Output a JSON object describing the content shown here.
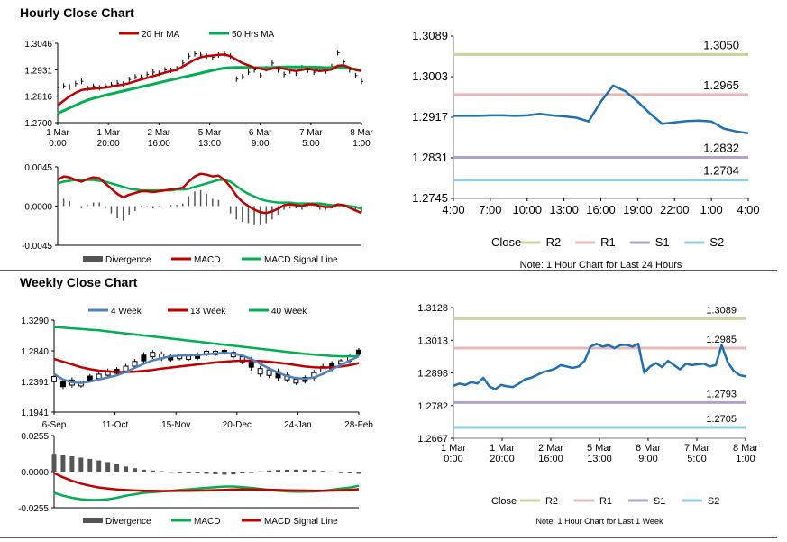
{
  "hourly_title": "Hourly Close Chart",
  "weekly_title": "Weekly Close Chart",
  "chart_data": [
    {
      "id": "hourly-price",
      "type": "line",
      "title": "",
      "legend": [
        "20 Hr MA",
        "50 Hrs MA"
      ],
      "colors": {
        "ma_short": "#c00000",
        "ma_long": "#00b050",
        "price": "#000000"
      },
      "y_ticks": [
        "1.3046",
        "1.2931",
        "1.2816",
        "1.2700"
      ],
      "ylim": [
        1.27,
        1.3046
      ],
      "x_ticks": [
        [
          "1 Mar",
          "0:00"
        ],
        [
          "1 Mar",
          "20:00"
        ],
        [
          "2 Mar",
          "16:00"
        ],
        [
          "5 Mar",
          "13:00"
        ],
        [
          "6 Mar",
          "9:00"
        ],
        [
          "7 Mar",
          "5:00"
        ],
        [
          "8 Mar",
          "1:00"
        ]
      ],
      "price": [
        1.2852,
        1.286,
        1.2855,
        1.287,
        1.288,
        1.285,
        1.2858,
        1.2852,
        1.286,
        1.2865,
        1.2872,
        1.2868,
        1.2888,
        1.29,
        1.2898,
        1.291,
        1.292,
        1.2915,
        1.293,
        1.2928,
        1.2935,
        1.296,
        1.299,
        1.3,
        1.2995,
        1.299,
        1.2985,
        1.2995,
        1.3,
        1.299,
        1.289,
        1.29,
        1.292,
        1.293,
        1.2905,
        1.2935,
        1.296,
        1.293,
        1.291,
        1.2925,
        1.2915,
        1.294,
        1.293,
        1.292,
        1.2935,
        1.2925,
        1.2945,
        1.3005,
        1.2965,
        1.293,
        1.2905,
        1.288
      ],
      "ma_short": [
        1.2775,
        1.2795,
        1.2815,
        1.283,
        1.2842,
        1.2846,
        1.2848,
        1.285,
        1.2853,
        1.2857,
        1.2862,
        1.2866,
        1.2872,
        1.288,
        1.2888,
        1.2895,
        1.2903,
        1.291,
        1.2918,
        1.2925,
        1.293,
        1.2945,
        1.296,
        1.2975,
        1.2985,
        1.299,
        1.2993,
        1.2996,
        1.2997,
        1.299,
        1.2975,
        1.296,
        1.295,
        1.294,
        1.2935,
        1.293,
        1.2935,
        1.294,
        1.2935,
        1.293,
        1.2925,
        1.293,
        1.2935,
        1.293,
        1.2925,
        1.2928,
        1.2932,
        1.2948,
        1.295,
        1.294,
        1.293,
        1.2925
      ],
      "ma_long": [
        1.274,
        1.2752,
        1.2764,
        1.2776,
        1.2788,
        1.2798,
        1.2806,
        1.2813,
        1.282,
        1.2826,
        1.2832,
        1.2838,
        1.2844,
        1.285,
        1.2856,
        1.2862,
        1.2868,
        1.2874,
        1.288,
        1.2886,
        1.2892,
        1.2898,
        1.2904,
        1.291,
        1.2916,
        1.2922,
        1.2928,
        1.2933,
        1.2938,
        1.294,
        1.2941,
        1.2941,
        1.2941,
        1.294,
        1.294,
        1.294,
        1.2941,
        1.2942,
        1.2943,
        1.2943,
        1.2943,
        1.2943,
        1.2943,
        1.2942,
        1.2941,
        1.294,
        1.294,
        1.2942,
        1.294,
        1.2937,
        1.2933,
        1.2928
      ]
    },
    {
      "id": "hourly-macd",
      "type": "line",
      "legend": [
        "Divergence",
        "MACD",
        "MACD Signal Line"
      ],
      "colors": {
        "divergence": "#555555",
        "macd": "#c00000",
        "signal": "#00b050"
      },
      "y_ticks": [
        "0.0045",
        "0.0000",
        "-0.0045"
      ],
      "ylim": [
        -0.0045,
        0.0045
      ],
      "macd": [
        0.003,
        0.0034,
        0.0033,
        0.003,
        0.0028,
        0.0031,
        0.0033,
        0.0032,
        0.0026,
        0.002,
        0.0014,
        0.001,
        0.0013,
        0.0015,
        0.0017,
        0.0017,
        0.0016,
        0.0017,
        0.0018,
        0.0019,
        0.002,
        0.0021,
        0.0028,
        0.0034,
        0.0037,
        0.0036,
        0.0034,
        0.0035,
        0.003,
        0.0022,
        0.0012,
        0.0005,
        0.0,
        -0.0004,
        -0.0007,
        -0.0008,
        -0.0006,
        -0.0003,
        0.0001,
        0.0002,
        0.0001,
        0.0,
        0.0002,
        0.0002,
        0.0,
        -0.0001,
        -0.0001,
        0.0002,
        0.0001,
        -0.0002,
        -0.0005,
        -0.0008
      ],
      "signal": [
        0.0026,
        0.0028,
        0.0029,
        0.003,
        0.003,
        0.003,
        0.003,
        0.0029,
        0.0028,
        0.0026,
        0.0024,
        0.0022,
        0.002,
        0.0019,
        0.0018,
        0.0018,
        0.0018,
        0.0018,
        0.0018,
        0.0018,
        0.0019,
        0.0019,
        0.002,
        0.0022,
        0.0024,
        0.0026,
        0.0028,
        0.003,
        0.003,
        0.0028,
        0.0023,
        0.0018,
        0.0014,
        0.0011,
        0.0008,
        0.0006,
        0.0005,
        0.0004,
        0.0004,
        0.0004,
        0.0003,
        0.0003,
        0.0003,
        0.0003,
        0.0003,
        0.0002,
        0.0001,
        0.0001,
        0.0001,
        0.0,
        -0.0001,
        -0.0003
      ]
    },
    {
      "id": "hourly-pivots",
      "type": "line",
      "title": "Note: 1 Hour Chart for Last 24 Hours",
      "legend": [
        "Close",
        "R2",
        "R1",
        "S1",
        "S2"
      ],
      "colors": {
        "close": "#1f6fb2",
        "R2": "#c3d69b",
        "R1": "#e6b9b8",
        "S1": "#b3a2c7",
        "S2": "#93cddd"
      },
      "y_ticks": [
        "1.3089",
        "1.3003",
        "1.2917",
        "1.2831",
        "1.2745"
      ],
      "ylim": [
        1.2745,
        1.3089
      ],
      "x_ticks": [
        "4:00",
        "7:00",
        "10:00",
        "13:00",
        "16:00",
        "19:00",
        "22:00",
        "1:00",
        "4:00"
      ],
      "levels": {
        "R2": 1.305,
        "R1": 1.2965,
        "S1": 1.2832,
        "S2": 1.2784
      },
      "level_labels": {
        "R2": "1.3050",
        "R1": "1.2965",
        "S1": "1.2832",
        "S2": "1.2784"
      },
      "close": [
        1.292,
        1.292,
        1.292,
        1.2921,
        1.2921,
        1.292,
        1.2921,
        1.2924,
        1.2921,
        1.2919,
        1.2916,
        1.2908,
        1.295,
        1.2984,
        1.2972,
        1.295,
        1.2925,
        1.2903,
        1.2906,
        1.2909,
        1.291,
        1.2908,
        1.2893,
        1.2887,
        1.2883
      ]
    },
    {
      "id": "weekly-price",
      "type": "line",
      "legend": [
        "4 Week",
        "13 Week",
        "40 Week"
      ],
      "colors": {
        "ma4": "#4f81bd",
        "ma13": "#c00000",
        "ma40": "#00b050",
        "price": "#000000"
      },
      "y_ticks": [
        "1.3290",
        "1.2840",
        "1.2391",
        "1.1941"
      ],
      "ylim": [
        1.1941,
        1.329
      ],
      "x_ticks": [
        "6-Sep",
        "11-Oct",
        "15-Nov",
        "20-Dec",
        "24-Jan",
        "28-Feb"
      ],
      "candles": [
        [
          1.25,
          1.235
        ],
        [
          1.242,
          1.228
        ],
        [
          1.245,
          1.23
        ],
        [
          1.24,
          1.23
        ],
        [
          1.25,
          1.238
        ],
        [
          1.253,
          1.24
        ],
        [
          1.258,
          1.245
        ],
        [
          1.26,
          1.248
        ],
        [
          1.265,
          1.251
        ],
        [
          1.272,
          1.258
        ],
        [
          1.282,
          1.265
        ],
        [
          1.285,
          1.272
        ],
        [
          1.283,
          1.269
        ],
        [
          1.279,
          1.268
        ],
        [
          1.28,
          1.27
        ],
        [
          1.279,
          1.269
        ],
        [
          1.282,
          1.27
        ],
        [
          1.286,
          1.276
        ],
        [
          1.286,
          1.276
        ],
        [
          1.287,
          1.278
        ],
        [
          1.285,
          1.272
        ],
        [
          1.279,
          1.264
        ],
        [
          1.275,
          1.255
        ],
        [
          1.262,
          1.246
        ],
        [
          1.26,
          1.244
        ],
        [
          1.258,
          1.24
        ],
        [
          1.252,
          1.238
        ],
        [
          1.245,
          1.234
        ],
        [
          1.248,
          1.236
        ],
        [
          1.256,
          1.24
        ],
        [
          1.265,
          1.249
        ],
        [
          1.269,
          1.254
        ],
        [
          1.272,
          1.262
        ],
        [
          1.28,
          1.265
        ],
        [
          1.288,
          1.276
        ]
      ],
      "ma4": [
        1.25,
        1.242,
        1.238,
        1.237,
        1.239,
        1.242,
        1.245,
        1.248,
        1.253,
        1.259,
        1.265,
        1.27,
        1.273,
        1.276,
        1.277,
        1.2775,
        1.278,
        1.279,
        1.28,
        1.281,
        1.28,
        1.277,
        1.272,
        1.265,
        1.258,
        1.252,
        1.247,
        1.244,
        1.243,
        1.245,
        1.25,
        1.257,
        1.263,
        1.27,
        1.276
      ],
      "ma13": [
        1.272,
        1.268,
        1.264,
        1.26,
        1.257,
        1.255,
        1.254,
        1.253,
        1.253,
        1.2535,
        1.2545,
        1.256,
        1.258,
        1.2595,
        1.261,
        1.2625,
        1.264,
        1.2655,
        1.267,
        1.268,
        1.269,
        1.2695,
        1.2695,
        1.269,
        1.268,
        1.2665,
        1.265,
        1.263,
        1.261,
        1.26,
        1.2595,
        1.26,
        1.261,
        1.263,
        1.266
      ],
      "ma40": [
        1.319,
        1.318,
        1.317,
        1.316,
        1.315,
        1.314,
        1.3125,
        1.311,
        1.3095,
        1.308,
        1.3065,
        1.305,
        1.3035,
        1.302,
        1.3005,
        1.299,
        1.2975,
        1.296,
        1.2945,
        1.293,
        1.2915,
        1.29,
        1.2885,
        1.287,
        1.2855,
        1.284,
        1.2825,
        1.281,
        1.2795,
        1.2785,
        1.2775,
        1.2765,
        1.276,
        1.276,
        1.2765
      ]
    },
    {
      "id": "weekly-macd",
      "type": "line",
      "legend": [
        "Divergence",
        "MACD",
        "MACD Signal Line"
      ],
      "colors": {
        "divergence": "#555555",
        "macd": "#00b050",
        "signal": "#c00000"
      },
      "y_ticks": [
        "0.0255",
        "0.0000",
        "-0.0255"
      ],
      "ylim": [
        -0.0255,
        0.0255
      ],
      "macd": [
        -0.015,
        -0.017,
        -0.0185,
        -0.0195,
        -0.02,
        -0.02,
        -0.0195,
        -0.0185,
        -0.017,
        -0.016,
        -0.015,
        -0.0145,
        -0.014,
        -0.0135,
        -0.013,
        -0.0125,
        -0.012,
        -0.0115,
        -0.011,
        -0.0105,
        -0.0105,
        -0.011,
        -0.0115,
        -0.0122,
        -0.013,
        -0.0136,
        -0.014,
        -0.0142,
        -0.0142,
        -0.014,
        -0.0135,
        -0.0128,
        -0.012,
        -0.0112,
        -0.01
      ],
      "signal": [
        -0.001,
        -0.004,
        -0.0065,
        -0.0085,
        -0.01,
        -0.0112,
        -0.012,
        -0.0126,
        -0.013,
        -0.0133,
        -0.0135,
        -0.0136,
        -0.0137,
        -0.0137,
        -0.0136,
        -0.0135,
        -0.0134,
        -0.0133,
        -0.0131,
        -0.0129,
        -0.0127,
        -0.0126,
        -0.0126,
        -0.0127,
        -0.0128,
        -0.013,
        -0.0132,
        -0.0133,
        -0.0134,
        -0.0135,
        -0.0135,
        -0.0134,
        -0.0132,
        -0.0129,
        -0.0124
      ]
    },
    {
      "id": "weekly-pivots",
      "type": "line",
      "title": "Note: 1 Hour Chart for Last 1 Week",
      "legend": [
        "Close",
        "R2",
        "R1",
        "S1",
        "S2"
      ],
      "colors": {
        "close": "#1f6fb2",
        "R2": "#c3d69b",
        "R1": "#e6b9b8",
        "S1": "#b3a2c7",
        "S2": "#93cddd"
      },
      "y_ticks": [
        "1.3128",
        "1.3013",
        "1.2898",
        "1.2782",
        "1.2667"
      ],
      "ylim": [
        1.2667,
        1.3128
      ],
      "x_ticks": [
        [
          "1 Mar",
          "0:00"
        ],
        [
          "1 Mar",
          "20:00"
        ],
        [
          "2 Mar",
          "16:00"
        ],
        [
          "5 Mar",
          "13:00"
        ],
        [
          "6 Mar",
          "9:00"
        ],
        [
          "7 Mar",
          "5:00"
        ],
        [
          "8 Mar",
          "1:00"
        ]
      ],
      "levels": {
        "R2": 1.3089,
        "R1": 1.2985,
        "S1": 1.2793,
        "S2": 1.2705
      },
      "level_labels": {
        "R2": "1.3089",
        "R1": "1.2985",
        "S1": "1.2793",
        "S2": "1.2705"
      },
      "close": [
        1.2852,
        1.286,
        1.2855,
        1.2865,
        1.286,
        1.288,
        1.285,
        1.284,
        1.2855,
        1.285,
        1.2848,
        1.286,
        1.2875,
        1.288,
        1.289,
        1.29,
        1.2905,
        1.2912,
        1.2925,
        1.292,
        1.2915,
        1.292,
        1.294,
        1.299,
        1.3,
        1.299,
        1.2995,
        1.2985,
        1.2995,
        1.2997,
        1.299,
        1.3,
        1.2898,
        1.292,
        1.2932,
        1.2918,
        1.294,
        1.2925,
        1.291,
        1.293,
        1.2925,
        1.2928,
        1.293,
        1.292,
        1.2925,
        1.2995,
        1.2935,
        1.2905,
        1.289,
        1.2885
      ]
    }
  ]
}
